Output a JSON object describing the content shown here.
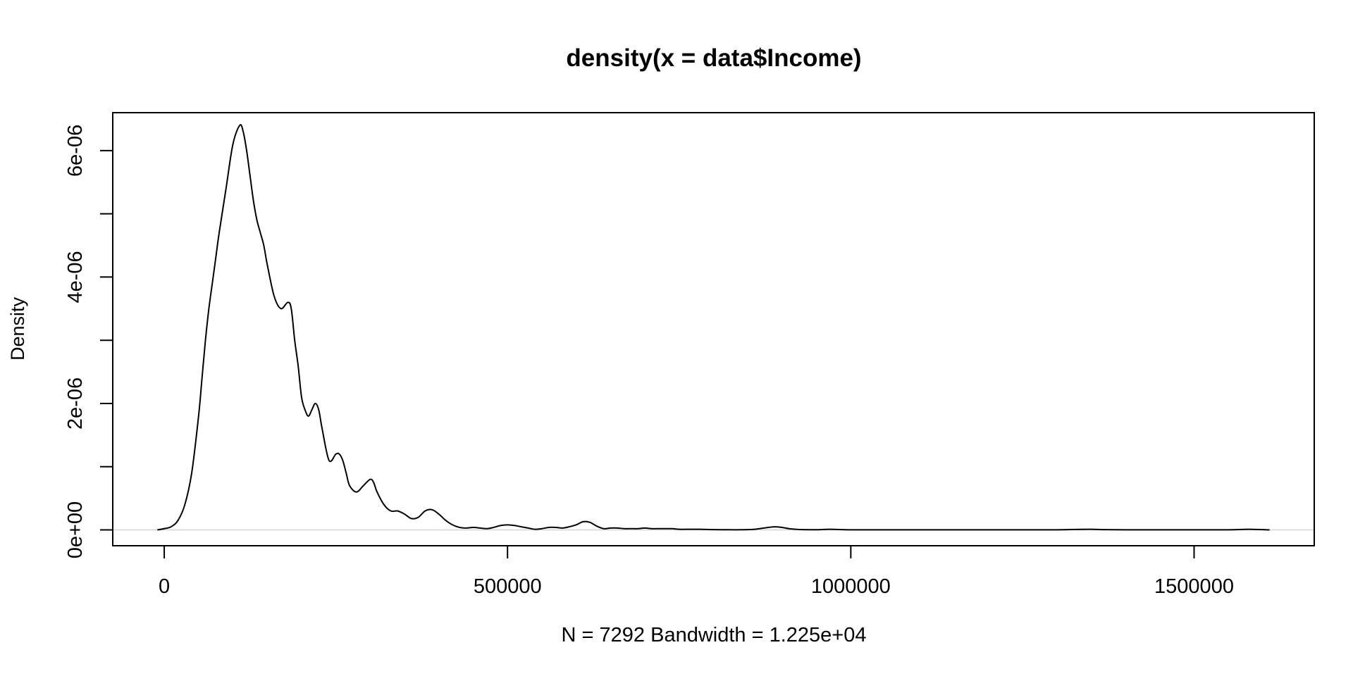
{
  "chart_data": {
    "type": "line",
    "title": "density(x = data$Income)",
    "xlabel": "N = 7292   Bandwidth = 1.225e+04",
    "ylabel": "Density",
    "xlim": [
      -75000,
      1675000
    ],
    "ylim": [
      -2.5e-07,
      6.6e-06
    ],
    "x_ticks": [
      0,
      500000,
      1000000,
      1500000
    ],
    "x_tick_labels": [
      "0",
      "500000",
      "1000000",
      "1500000"
    ],
    "y_ticks": [
      0,
      1e-06,
      2e-06,
      3e-06,
      4e-06,
      5e-06,
      6e-06
    ],
    "y_tick_labels": [
      "0e+00",
      "",
      "2e-06",
      "",
      "4e-06",
      "",
      "6e-06"
    ],
    "grid": false,
    "baseline": 0,
    "colors": {
      "line": "#000000",
      "baseline": "#d3d3d3",
      "frame": "#000000"
    },
    "series": [
      {
        "x": [
          -10000,
          0,
          10000,
          20000,
          30000,
          40000,
          50000,
          55000,
          60000,
          65000,
          70000,
          75000,
          80000,
          90000,
          100000,
          110000,
          115000,
          120000,
          125000,
          130000,
          135000,
          140000,
          145000,
          150000,
          160000,
          170000,
          180000,
          185000,
          190000,
          195000,
          200000,
          205000,
          210000,
          215000,
          220000,
          225000,
          230000,
          240000,
          250000,
          255000,
          260000,
          265000,
          270000,
          280000,
          290000,
          300000,
          305000,
          310000,
          320000,
          330000,
          340000,
          350000,
          360000,
          370000,
          380000,
          390000,
          400000,
          410000,
          420000,
          430000,
          440000,
          450000,
          460000,
          470000,
          480000,
          490000,
          500000,
          510000,
          520000,
          530000,
          540000,
          550000,
          560000,
          570000,
          580000,
          590000,
          600000,
          610000,
          620000,
          630000,
          640000,
          650000,
          660000,
          670000,
          680000,
          690000,
          700000,
          710000,
          720000,
          730000,
          740000,
          750000,
          760000,
          780000,
          800000,
          820000,
          840000,
          860000,
          880000,
          890000,
          900000,
          910000,
          920000,
          930000,
          950000,
          970000,
          1000000,
          1050000,
          1100000,
          1150000,
          1200000,
          1250000,
          1300000,
          1330000,
          1350000,
          1370000,
          1400000,
          1450000,
          1500000,
          1550000,
          1570000,
          1580000,
          1600000,
          1610000
        ],
        "y": [
          0.0,
          2e-08,
          5e-08,
          1.5e-07,
          4e-07,
          9e-07,
          1.8e-06,
          2.4e-06,
          3e-06,
          3.5e-06,
          3.9e-06,
          4.3e-06,
          4.7e-06,
          5.4e-06,
          6.1e-06,
          6.4e-06,
          6.3e-06,
          6e-06,
          5.6e-06,
          5.2e-06,
          4.9e-06,
          4.7e-06,
          4.5e-06,
          4.2e-06,
          3.7e-06,
          3.5e-06,
          3.6e-06,
          3.5e-06,
          3e-06,
          2.6e-06,
          2.1e-06,
          1.9e-06,
          1.8e-06,
          1.9e-06,
          2e-06,
          1.9e-06,
          1.6e-06,
          1.1e-06,
          1.2e-06,
          1.2e-06,
          1.1e-06,
          9e-07,
          7e-07,
          6e-07,
          7e-07,
          8e-07,
          7.5e-07,
          6e-07,
          4e-07,
          3e-07,
          3e-07,
          2.5e-07,
          1.8e-07,
          2e-07,
          3e-07,
          3.2e-07,
          2.5e-07,
          1.5e-07,
          8e-08,
          4e-08,
          3e-08,
          4e-08,
          3e-08,
          2e-08,
          4e-08,
          7e-08,
          8e-08,
          7e-08,
          5e-08,
          3e-08,
          1e-08,
          2e-08,
          4e-08,
          4e-08,
          3e-08,
          5e-08,
          8e-08,
          1.3e-07,
          1.2e-07,
          6e-08,
          2e-08,
          3e-08,
          3e-08,
          2e-08,
          2e-08,
          2e-08,
          3e-08,
          2e-08,
          2e-08,
          2e-08,
          2e-08,
          1e-08,
          1e-08,
          1e-08,
          5e-09,
          3e-09,
          3e-09,
          1e-08,
          4e-08,
          5e-08,
          4e-08,
          2e-08,
          1e-08,
          5e-09,
          3e-09,
          1e-08,
          2e-09,
          2e-09,
          2e-09,
          2e-09,
          2e-09,
          2e-09,
          2e-09,
          8e-09,
          1e-08,
          5e-09,
          2e-09,
          2e-09,
          2e-09,
          2e-09,
          8e-09,
          1e-08,
          5e-09,
          0.0
        ]
      }
    ]
  }
}
